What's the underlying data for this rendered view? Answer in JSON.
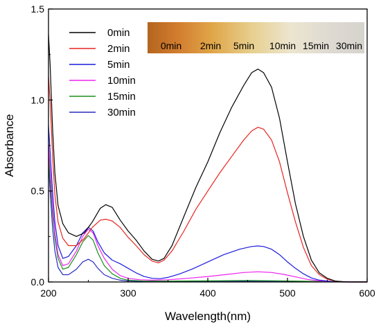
{
  "chart_data": {
    "type": "line",
    "xlabel": "Wavelength(nm)",
    "ylabel": "Absorbance",
    "xlim": [
      200,
      600
    ],
    "ylim": [
      0,
      1.5
    ],
    "x_ticks": [
      "200",
      "300",
      "400",
      "500",
      "600"
    ],
    "y_ticks": [
      "0.0",
      "0.5",
      "1.0",
      "1.5"
    ],
    "grid": false,
    "legend_position": "top-left",
    "series": [
      {
        "name": "0min",
        "color": "#000000",
        "points": [
          [
            200,
            1.36
          ],
          [
            202,
            1.2
          ],
          [
            205,
            0.85
          ],
          [
            208,
            0.6
          ],
          [
            212,
            0.42
          ],
          [
            218,
            0.32
          ],
          [
            225,
            0.27
          ],
          [
            235,
            0.25
          ],
          [
            245,
            0.27
          ],
          [
            255,
            0.33
          ],
          [
            265,
            0.405
          ],
          [
            272,
            0.425
          ],
          [
            280,
            0.41
          ],
          [
            290,
            0.34
          ],
          [
            300,
            0.28
          ],
          [
            310,
            0.23
          ],
          [
            320,
            0.17
          ],
          [
            330,
            0.125
          ],
          [
            338,
            0.115
          ],
          [
            345,
            0.13
          ],
          [
            355,
            0.2
          ],
          [
            370,
            0.36
          ],
          [
            385,
            0.52
          ],
          [
            400,
            0.66
          ],
          [
            415,
            0.82
          ],
          [
            430,
            0.96
          ],
          [
            445,
            1.08
          ],
          [
            455,
            1.15
          ],
          [
            463,
            1.17
          ],
          [
            470,
            1.15
          ],
          [
            480,
            1.07
          ],
          [
            490,
            0.9
          ],
          [
            500,
            0.66
          ],
          [
            510,
            0.43
          ],
          [
            520,
            0.25
          ],
          [
            530,
            0.12
          ],
          [
            540,
            0.05
          ],
          [
            550,
            0.02
          ],
          [
            560,
            0.005
          ],
          [
            575,
            0.0
          ],
          [
            600,
            0.0
          ]
        ]
      },
      {
        "name": "2min",
        "color": "#e8231e",
        "points": [
          [
            200,
            1.13
          ],
          [
            202,
            1.0
          ],
          [
            205,
            0.7
          ],
          [
            208,
            0.48
          ],
          [
            212,
            0.33
          ],
          [
            218,
            0.24
          ],
          [
            225,
            0.2
          ],
          [
            235,
            0.2
          ],
          [
            245,
            0.24
          ],
          [
            255,
            0.3
          ],
          [
            265,
            0.34
          ],
          [
            272,
            0.345
          ],
          [
            280,
            0.335
          ],
          [
            290,
            0.3
          ],
          [
            300,
            0.245
          ],
          [
            310,
            0.2
          ],
          [
            320,
            0.15
          ],
          [
            330,
            0.115
          ],
          [
            338,
            0.105
          ],
          [
            345,
            0.12
          ],
          [
            355,
            0.17
          ],
          [
            370,
            0.28
          ],
          [
            385,
            0.4
          ],
          [
            400,
            0.5
          ],
          [
            415,
            0.6
          ],
          [
            430,
            0.69
          ],
          [
            445,
            0.78
          ],
          [
            455,
            0.83
          ],
          [
            463,
            0.85
          ],
          [
            470,
            0.84
          ],
          [
            480,
            0.78
          ],
          [
            490,
            0.66
          ],
          [
            500,
            0.49
          ],
          [
            510,
            0.33
          ],
          [
            520,
            0.19
          ],
          [
            530,
            0.09
          ],
          [
            540,
            0.04
          ],
          [
            550,
            0.015
          ],
          [
            560,
            0.004
          ],
          [
            575,
            0.0
          ],
          [
            600,
            0.0
          ]
        ]
      },
      {
        "name": "5min",
        "color": "#1a1adb",
        "points": [
          [
            200,
            0.86
          ],
          [
            202,
            0.72
          ],
          [
            205,
            0.5
          ],
          [
            208,
            0.33
          ],
          [
            212,
            0.2
          ],
          [
            218,
            0.13
          ],
          [
            225,
            0.14
          ],
          [
            235,
            0.2
          ],
          [
            243,
            0.27
          ],
          [
            250,
            0.3
          ],
          [
            256,
            0.28
          ],
          [
            262,
            0.22
          ],
          [
            270,
            0.16
          ],
          [
            280,
            0.12
          ],
          [
            290,
            0.1
          ],
          [
            300,
            0.075
          ],
          [
            310,
            0.05
          ],
          [
            320,
            0.03
          ],
          [
            330,
            0.02
          ],
          [
            340,
            0.018
          ],
          [
            350,
            0.025
          ],
          [
            365,
            0.045
          ],
          [
            380,
            0.07
          ],
          [
            400,
            0.11
          ],
          [
            420,
            0.15
          ],
          [
            440,
            0.18
          ],
          [
            455,
            0.195
          ],
          [
            463,
            0.198
          ],
          [
            470,
            0.195
          ],
          [
            480,
            0.18
          ],
          [
            490,
            0.15
          ],
          [
            500,
            0.11
          ],
          [
            510,
            0.075
          ],
          [
            520,
            0.045
          ],
          [
            530,
            0.022
          ],
          [
            540,
            0.01
          ],
          [
            555,
            0.003
          ],
          [
            570,
            0.0
          ],
          [
            600,
            0.0
          ]
        ]
      },
      {
        "name": "10min",
        "color": "#ee22ee",
        "points": [
          [
            200,
            0.76
          ],
          [
            202,
            0.62
          ],
          [
            205,
            0.42
          ],
          [
            208,
            0.27
          ],
          [
            212,
            0.15
          ],
          [
            218,
            0.09
          ],
          [
            225,
            0.1
          ],
          [
            235,
            0.17
          ],
          [
            243,
            0.25
          ],
          [
            250,
            0.29
          ],
          [
            256,
            0.27
          ],
          [
            262,
            0.2
          ],
          [
            270,
            0.13
          ],
          [
            280,
            0.07
          ],
          [
            290,
            0.035
          ],
          [
            300,
            0.02
          ],
          [
            315,
            0.012
          ],
          [
            330,
            0.01
          ],
          [
            350,
            0.012
          ],
          [
            375,
            0.02
          ],
          [
            400,
            0.03
          ],
          [
            425,
            0.042
          ],
          [
            445,
            0.052
          ],
          [
            463,
            0.056
          ],
          [
            480,
            0.052
          ],
          [
            495,
            0.042
          ],
          [
            510,
            0.028
          ],
          [
            525,
            0.014
          ],
          [
            540,
            0.006
          ],
          [
            555,
            0.002
          ],
          [
            570,
            0.0
          ],
          [
            600,
            0.0
          ]
        ]
      },
      {
        "name": "15min",
        "color": "#1a8f1a",
        "points": [
          [
            200,
            0.7
          ],
          [
            202,
            0.56
          ],
          [
            205,
            0.38
          ],
          [
            208,
            0.24
          ],
          [
            212,
            0.13
          ],
          [
            218,
            0.07
          ],
          [
            225,
            0.08
          ],
          [
            235,
            0.15
          ],
          [
            243,
            0.22
          ],
          [
            250,
            0.255
          ],
          [
            256,
            0.23
          ],
          [
            262,
            0.16
          ],
          [
            270,
            0.09
          ],
          [
            280,
            0.045
          ],
          [
            290,
            0.02
          ],
          [
            300,
            0.01
          ],
          [
            320,
            0.005
          ],
          [
            350,
            0.005
          ],
          [
            400,
            0.006
          ],
          [
            450,
            0.008
          ],
          [
            480,
            0.007
          ],
          [
            520,
            0.004
          ],
          [
            560,
            0.001
          ],
          [
            600,
            0.0
          ]
        ]
      },
      {
        "name": "30min",
        "color": "#2a2abf",
        "points": [
          [
            200,
            0.66
          ],
          [
            202,
            0.5
          ],
          [
            205,
            0.3
          ],
          [
            208,
            0.17
          ],
          [
            212,
            0.08
          ],
          [
            218,
            0.04
          ],
          [
            225,
            0.04
          ],
          [
            235,
            0.07
          ],
          [
            243,
            0.11
          ],
          [
            250,
            0.125
          ],
          [
            256,
            0.11
          ],
          [
            262,
            0.075
          ],
          [
            270,
            0.04
          ],
          [
            280,
            0.02
          ],
          [
            290,
            0.01
          ],
          [
            300,
            0.005
          ],
          [
            320,
            0.003
          ],
          [
            360,
            0.003
          ],
          [
            420,
            0.004
          ],
          [
            470,
            0.004
          ],
          [
            520,
            0.002
          ],
          [
            600,
            0.0
          ]
        ]
      }
    ],
    "inset_photo": {
      "labels": [
        "0min",
        "2min",
        "5min",
        "10min",
        "15min",
        "30min"
      ],
      "colors": [
        "#c9782c",
        "#d79a3f",
        "#e4c67e",
        "#e8dfc4",
        "#d8d4cc",
        "#d2d0cc"
      ]
    }
  }
}
